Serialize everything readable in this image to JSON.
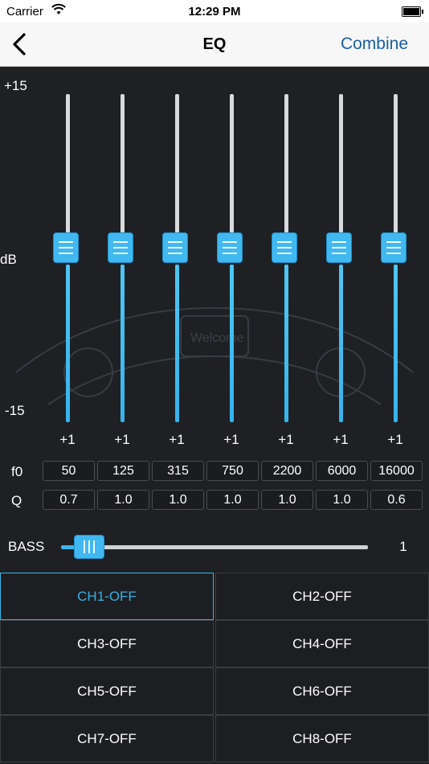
{
  "status_bar": {
    "carrier": "Carrier",
    "time": "12:29 PM"
  },
  "nav": {
    "back_icon": "chevron-left-icon",
    "title": "EQ",
    "combine_label": "Combine"
  },
  "scale": {
    "top": "+15",
    "mid": "dB",
    "bottom": "-15"
  },
  "eq": {
    "bands": [
      {
        "gain": "+1",
        "f0": "50",
        "q": "0.7"
      },
      {
        "gain": "+1",
        "f0": "125",
        "q": "1.0"
      },
      {
        "gain": "+1",
        "f0": "315",
        "q": "1.0"
      },
      {
        "gain": "+1",
        "f0": "750",
        "q": "1.0"
      },
      {
        "gain": "+1",
        "f0": "2200",
        "q": "1.0"
      },
      {
        "gain": "+1",
        "f0": "6000",
        "q": "1.0"
      },
      {
        "gain": "+1",
        "f0": "16000",
        "q": "0.6"
      }
    ],
    "f0_label": "f0",
    "q_label": "Q"
  },
  "bass": {
    "label": "BASS",
    "value": "1"
  },
  "channels": [
    {
      "label": "CH1-OFF",
      "active": true
    },
    {
      "label": "CH2-OFF"
    },
    {
      "label": "CH3-OFF"
    },
    {
      "label": "CH4-OFF"
    },
    {
      "label": "CH5-OFF"
    },
    {
      "label": "CH6-OFF"
    },
    {
      "label": "CH7-OFF"
    },
    {
      "label": "CH8-OFF"
    }
  ],
  "colors": {
    "accent": "#41b8ef",
    "link": "#1c5ea6",
    "background": "#1f2023"
  },
  "watermark": "Welcome"
}
